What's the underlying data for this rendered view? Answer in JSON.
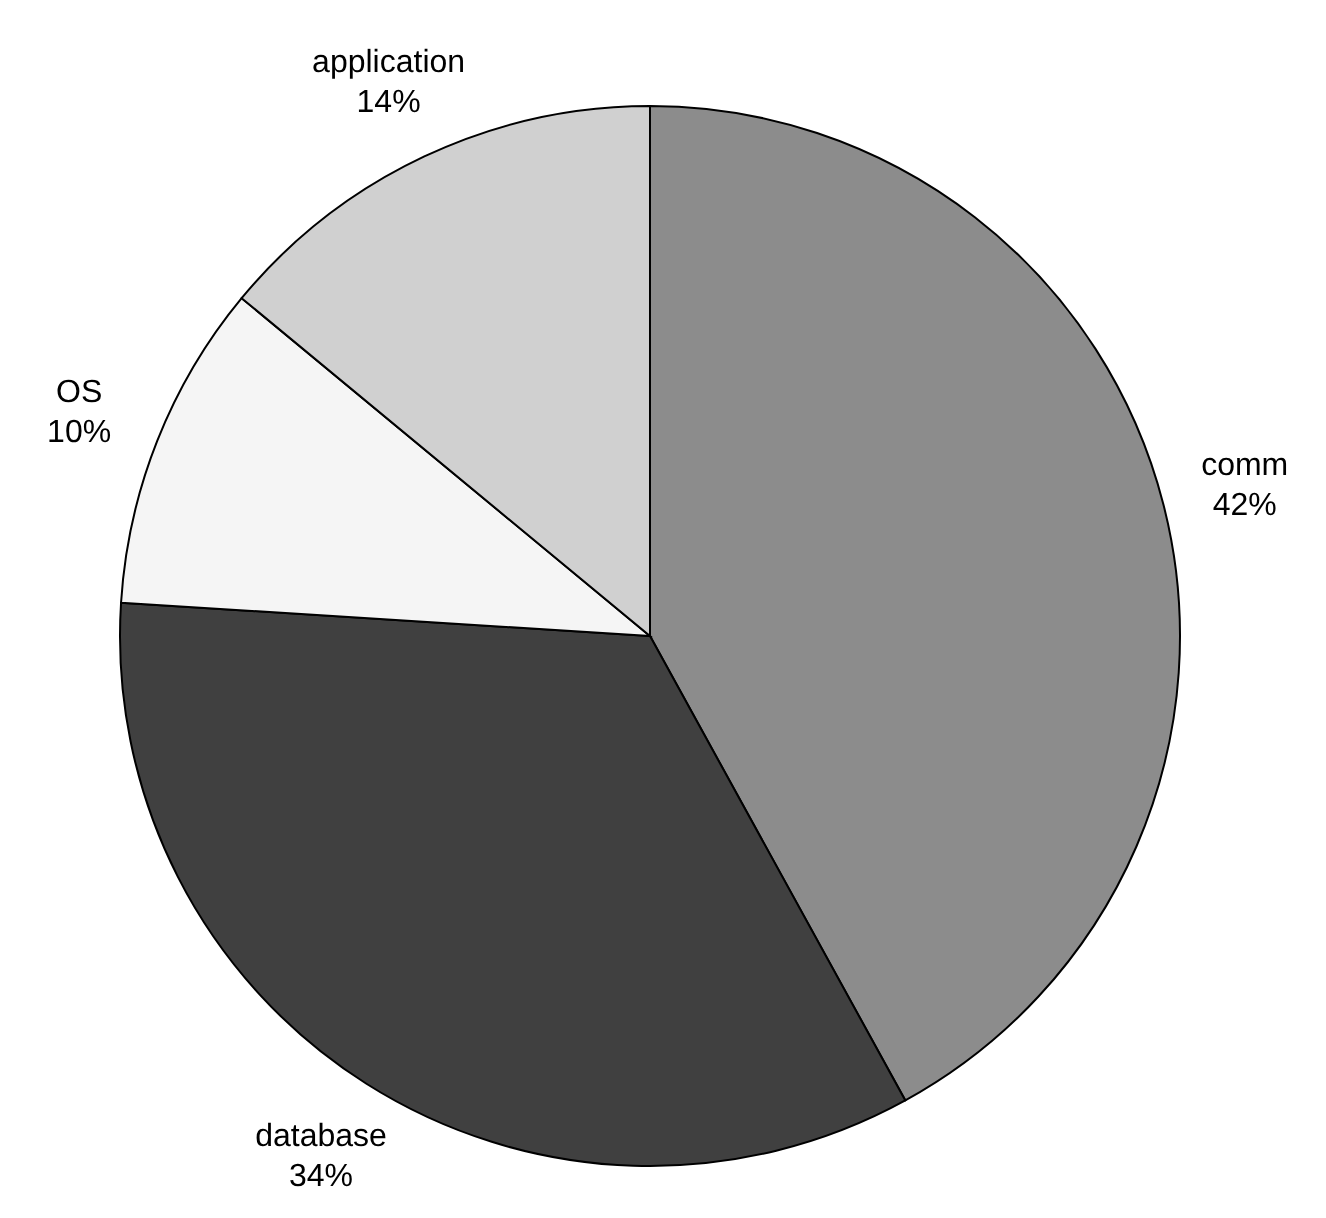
{
  "chart_data": {
    "type": "pie",
    "categories": [
      "comm",
      "database",
      "OS",
      "application"
    ],
    "values": [
      42,
      34,
      10,
      14
    ],
    "colors": [
      "#8c8c8c",
      "#404040",
      "#f5f5f5",
      "#d0d0d0"
    ],
    "value_labels": [
      "42%",
      "34%",
      "10%",
      "14%"
    ]
  }
}
